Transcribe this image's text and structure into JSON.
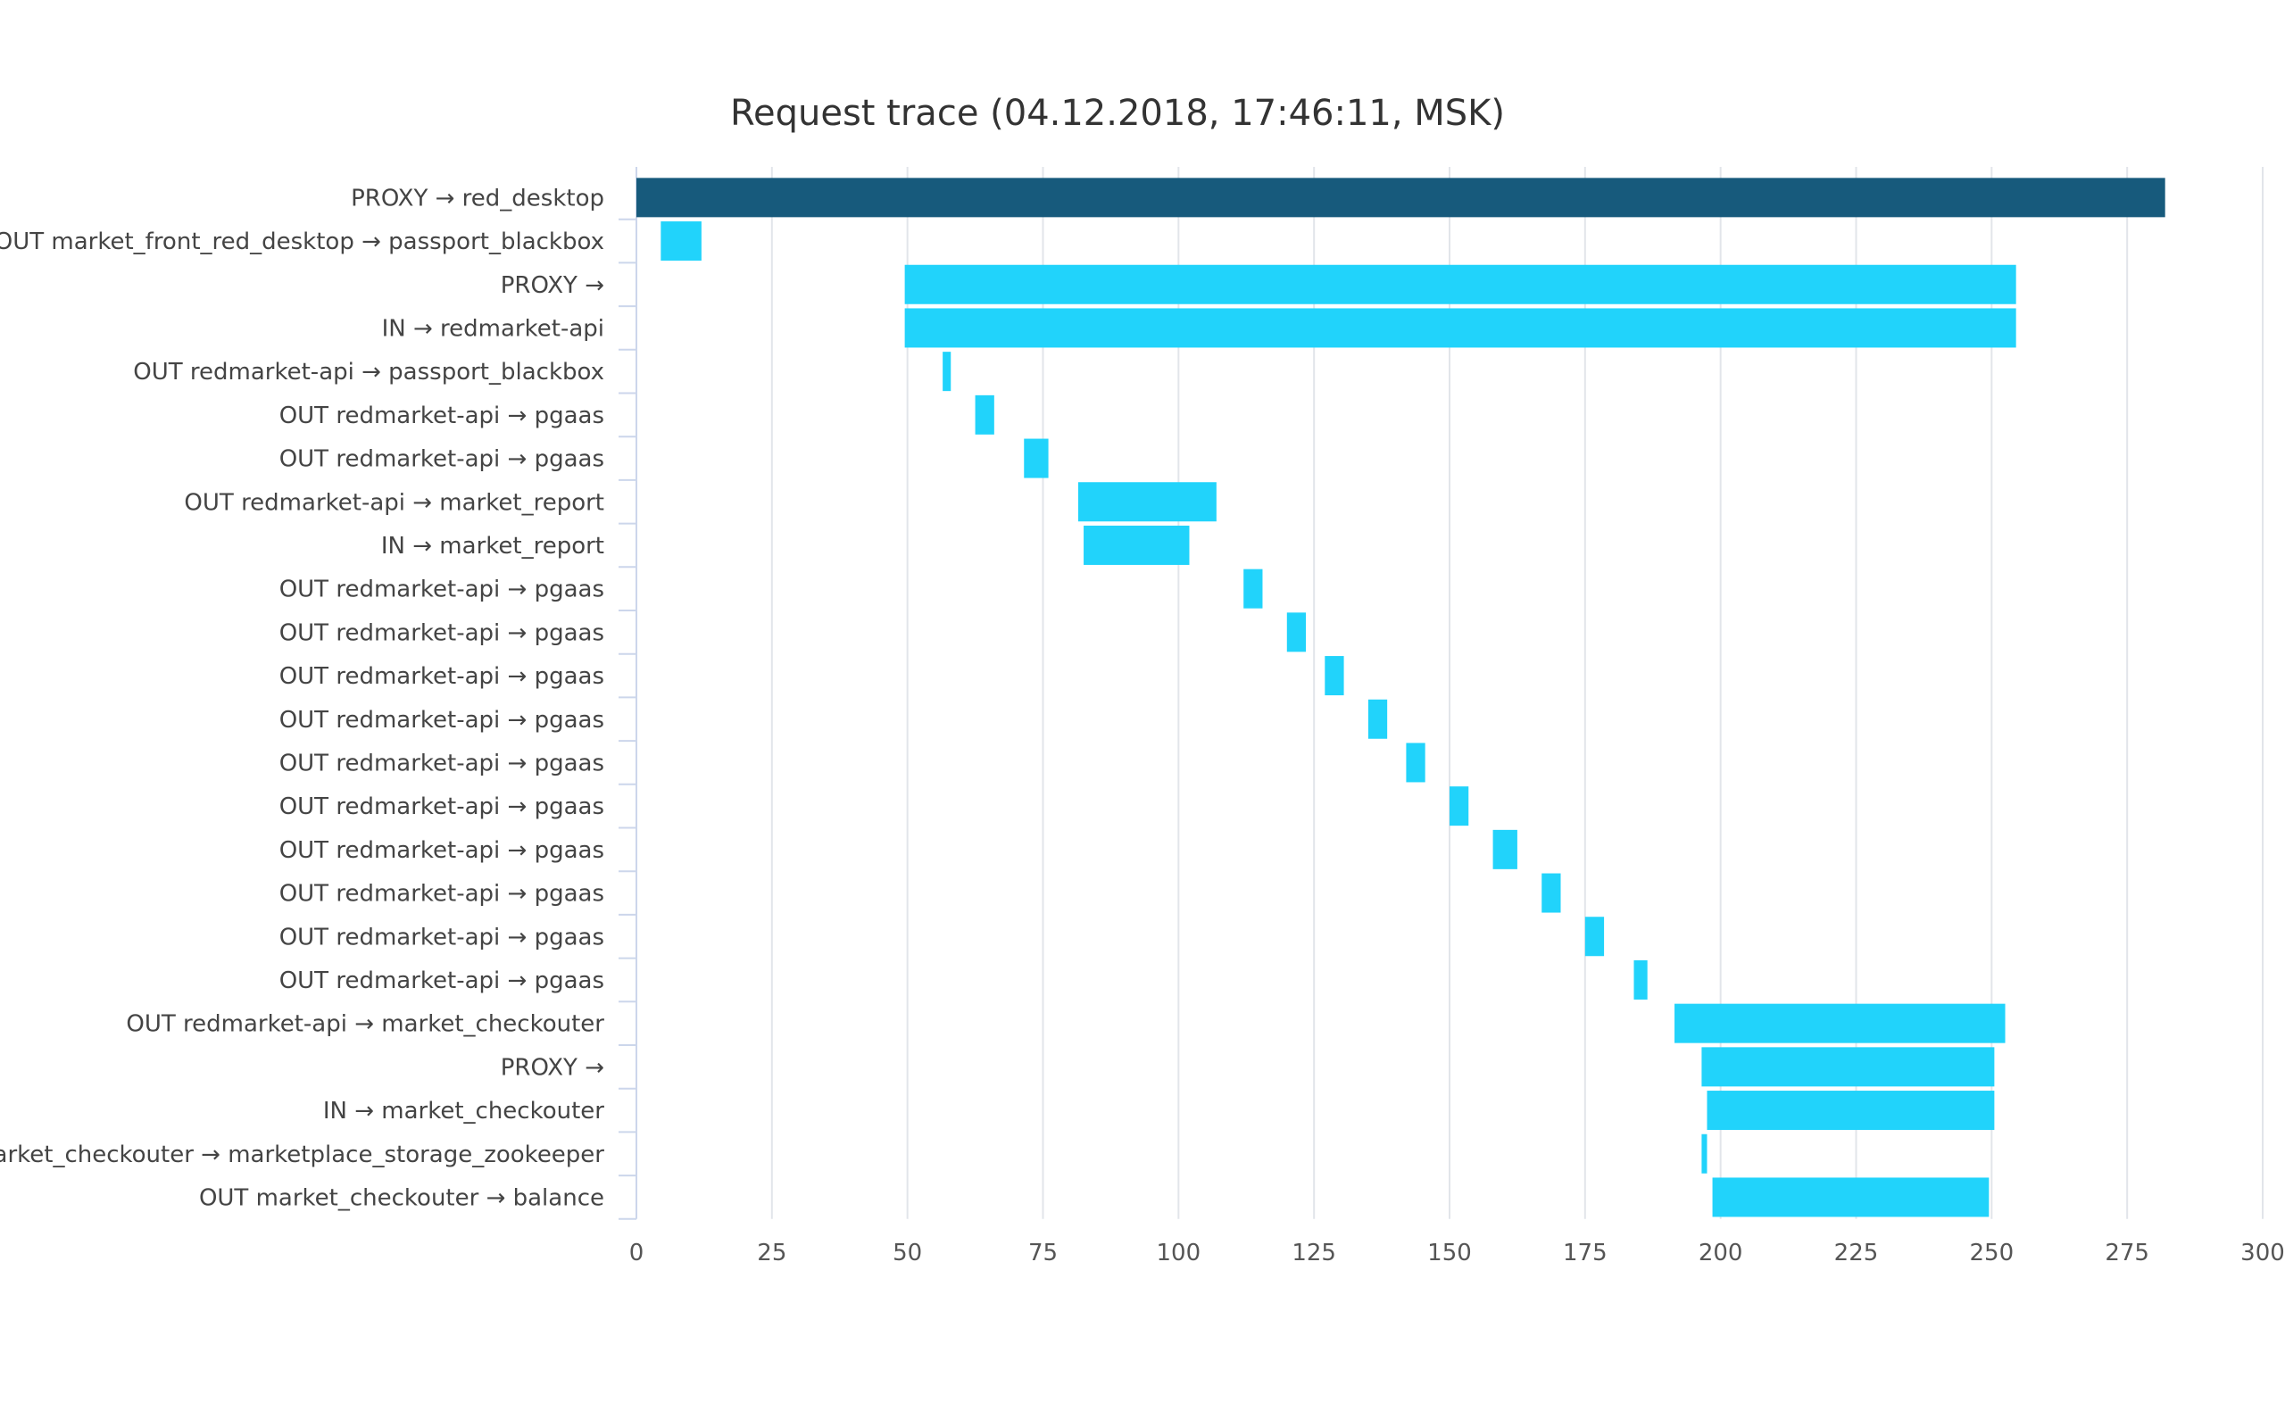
{
  "chart_data": {
    "type": "bar",
    "orientation": "horizontal",
    "subtype": "gantt",
    "title": "Request trace (04.12.2018, 17:46:11, MSK)",
    "xlabel": "",
    "ylabel": "",
    "xlim": [
      0,
      300
    ],
    "xticks": [
      0,
      25,
      50,
      75,
      100,
      125,
      150,
      175,
      200,
      225,
      250,
      275,
      300
    ],
    "grid": "vertical",
    "legend": "none",
    "colors": {
      "root": "#175a7c",
      "span": "#21d3fb",
      "grid": "#e2e5ea",
      "axis": "#ccd6eb"
    },
    "rows": [
      {
        "label": "PROXY → red_desktop",
        "start": 0,
        "end": 282,
        "color": "#175a7c"
      },
      {
        "label": "OUT market_front_red_desktop → passport_blackbox",
        "start": 4.5,
        "end": 12,
        "color": "#21d3fb"
      },
      {
        "label": "PROXY →",
        "start": 49.5,
        "end": 254.5,
        "color": "#21d3fb"
      },
      {
        "label": "IN → redmarket-api",
        "start": 49.5,
        "end": 254.5,
        "color": "#21d3fb"
      },
      {
        "label": "OUT redmarket-api → passport_blackbox",
        "start": 56.5,
        "end": 58,
        "color": "#21d3fb"
      },
      {
        "label": "OUT redmarket-api → pgaas",
        "start": 62.5,
        "end": 66,
        "color": "#21d3fb"
      },
      {
        "label": "OUT redmarket-api → pgaas",
        "start": 71.5,
        "end": 76,
        "color": "#21d3fb"
      },
      {
        "label": "OUT redmarket-api → market_report",
        "start": 81.5,
        "end": 107,
        "color": "#21d3fb"
      },
      {
        "label": "IN → market_report",
        "start": 82.5,
        "end": 102,
        "color": "#21d3fb"
      },
      {
        "label": "OUT redmarket-api → pgaas",
        "start": 112,
        "end": 115.5,
        "color": "#21d3fb"
      },
      {
        "label": "OUT redmarket-api → pgaas",
        "start": 120,
        "end": 123.5,
        "color": "#21d3fb"
      },
      {
        "label": "OUT redmarket-api → pgaas",
        "start": 127,
        "end": 130.5,
        "color": "#21d3fb"
      },
      {
        "label": "OUT redmarket-api → pgaas",
        "start": 135,
        "end": 138.5,
        "color": "#21d3fb"
      },
      {
        "label": "OUT redmarket-api → pgaas",
        "start": 142,
        "end": 145.5,
        "color": "#21d3fb"
      },
      {
        "label": "OUT redmarket-api → pgaas",
        "start": 150,
        "end": 153.5,
        "color": "#21d3fb"
      },
      {
        "label": "OUT redmarket-api → pgaas",
        "start": 158,
        "end": 162.5,
        "color": "#21d3fb"
      },
      {
        "label": "OUT redmarket-api → pgaas",
        "start": 167,
        "end": 170.5,
        "color": "#21d3fb"
      },
      {
        "label": "OUT redmarket-api → pgaas",
        "start": 175,
        "end": 178.5,
        "color": "#21d3fb"
      },
      {
        "label": "OUT redmarket-api → pgaas",
        "start": 184,
        "end": 186.5,
        "color": "#21d3fb"
      },
      {
        "label": "OUT redmarket-api → market_checkouter",
        "start": 191.5,
        "end": 252.5,
        "color": "#21d3fb"
      },
      {
        "label": "PROXY →",
        "start": 196.5,
        "end": 250.5,
        "color": "#21d3fb"
      },
      {
        "label": "IN → market_checkouter",
        "start": 197.5,
        "end": 250.5,
        "color": "#21d3fb"
      },
      {
        "label": "OUT market_checkouter → marketplace_storage_zookeeper",
        "start": 196.5,
        "end": 197.5,
        "color": "#21d3fb"
      },
      {
        "label": "OUT market_checkouter → balance",
        "start": 198.5,
        "end": 249.5,
        "color": "#21d3fb"
      }
    ]
  }
}
